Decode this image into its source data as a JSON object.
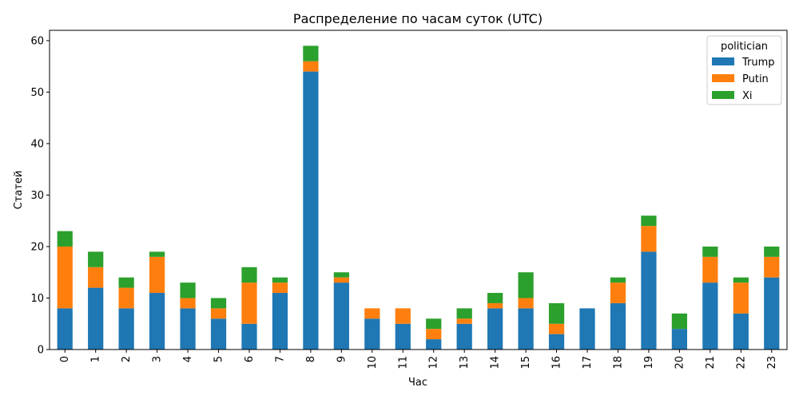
{
  "chart_data": {
    "type": "bar",
    "stacked": true,
    "title": "Распределение по часам суток (UTC)",
    "xlabel": "Час",
    "ylabel": "Статей",
    "ylim": [
      0,
      62
    ],
    "yticks": [
      0,
      10,
      20,
      30,
      40,
      50,
      60
    ],
    "categories": [
      "0",
      "1",
      "2",
      "3",
      "4",
      "5",
      "6",
      "7",
      "8",
      "9",
      "10",
      "11",
      "12",
      "13",
      "14",
      "15",
      "16",
      "17",
      "18",
      "19",
      "20",
      "21",
      "22",
      "23"
    ],
    "legend": {
      "title": "politician",
      "placement": "top-right"
    },
    "series": [
      {
        "name": "Trump",
        "color": "#1f77b4",
        "values": [
          8,
          12,
          8,
          11,
          8,
          6,
          5,
          11,
          54,
          13,
          6,
          5,
          2,
          5,
          8,
          8,
          3,
          8,
          9,
          19,
          4,
          13,
          7,
          14
        ]
      },
      {
        "name": "Putin",
        "color": "#ff7f0e",
        "values": [
          12,
          4,
          4,
          7,
          2,
          2,
          8,
          2,
          2,
          1,
          2,
          3,
          2,
          1,
          1,
          2,
          2,
          0,
          4,
          5,
          0,
          5,
          6,
          4
        ]
      },
      {
        "name": "Xi",
        "color": "#2ca02c",
        "values": [
          3,
          3,
          2,
          1,
          3,
          2,
          3,
          1,
          3,
          1,
          0,
          0,
          2,
          2,
          2,
          5,
          4,
          0,
          1,
          2,
          3,
          2,
          1,
          2
        ]
      }
    ]
  }
}
